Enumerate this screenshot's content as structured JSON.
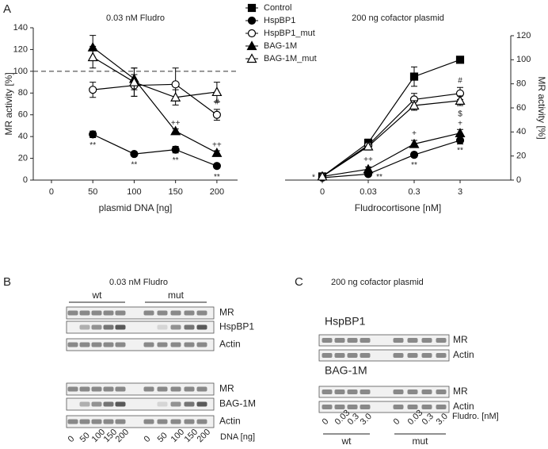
{
  "panel_labels": [
    "A",
    "B",
    "C"
  ],
  "chart_data": [
    {
      "type": "line",
      "title": "0.03 nM Fludro",
      "xlabel": "plasmid DNA [ng]",
      "ylabel": "MR activity [%]",
      "x": [
        50,
        100,
        150,
        200
      ],
      "xlim": [
        -22,
        225
      ],
      "xticks": [
        0,
        50,
        100,
        150,
        200
      ],
      "ylim": [
        0,
        140
      ],
      "yticks": [
        0,
        20,
        40,
        60,
        80,
        100,
        120,
        140
      ],
      "reference_line": 100,
      "series": [
        {
          "name": "HspBP1",
          "color": "#000000",
          "marker": "circle",
          "values": [
            42,
            24,
            28,
            13
          ],
          "errors": [
            3,
            2,
            3,
            2
          ]
        },
        {
          "name": "HspBP1_mut",
          "color": "#000000",
          "marker": "circle-open",
          "values": [
            83,
            87,
            88,
            60
          ],
          "errors": [
            7,
            10,
            15,
            5
          ]
        },
        {
          "name": "BAG-1M",
          "color": "#000000",
          "marker": "triangle",
          "values": [
            122,
            93,
            45,
            25
          ],
          "errors": [
            11,
            10,
            2,
            2
          ]
        },
        {
          "name": "BAG-1M_mut",
          "color": "#000000",
          "marker": "triangle-open",
          "values": [
            113,
            90,
            76,
            81
          ],
          "errors": [
            10,
            13,
            7,
            9
          ]
        }
      ],
      "annotations": [
        "**",
        "**",
        "**",
        "**",
        "++",
        "++",
        "#"
      ]
    },
    {
      "type": "line",
      "title": "200 ng cofactor plasmid",
      "xlabel": "Fludrocortisone [nM]",
      "ylabel": "MR activity [%]",
      "categories": [
        "0",
        "0.03",
        "0.3",
        "3"
      ],
      "legend": true,
      "y2lim": [
        0,
        120
      ],
      "y2ticks": [
        0,
        20,
        40,
        60,
        80,
        100,
        120
      ],
      "series": [
        {
          "name": "Control",
          "color": "#000000",
          "marker": "square",
          "axis": "y2",
          "values": [
            3,
            31,
            86,
            100
          ],
          "errors": [
            1,
            3,
            8,
            1
          ]
        },
        {
          "name": "HspBP1",
          "color": "#000000",
          "marker": "circle",
          "axis": "y2",
          "values": [
            2,
            5,
            21,
            33
          ],
          "errors": [
            1,
            1,
            2,
            3
          ]
        },
        {
          "name": "HspBP1_mut",
          "color": "#000000",
          "marker": "circle-open",
          "axis": "y2",
          "values": [
            3,
            29,
            67,
            72
          ],
          "errors": [
            1,
            3,
            5,
            5
          ]
        },
        {
          "name": "BAG-1M",
          "color": "#000000",
          "marker": "triangle",
          "axis": "y2",
          "values": [
            3,
            9,
            30,
            39
          ],
          "errors": [
            1,
            2,
            3,
            3
          ]
        },
        {
          "name": "BAG-1M_mut",
          "color": "#000000",
          "marker": "triangle-open",
          "axis": "y2",
          "values": [
            3,
            28,
            62,
            66
          ],
          "errors": [
            1,
            3,
            4,
            4
          ]
        }
      ],
      "annotations": [
        "*",
        "++",
        "**",
        "+",
        "**",
        "#",
        "$",
        "+",
        "**"
      ]
    }
  ],
  "blots": {
    "B": {
      "title": "0.03 nM Fludro",
      "groups": [
        "wt",
        "mut"
      ],
      "sets": [
        {
          "rows": [
            "MR",
            "HspBP1",
            "Actin"
          ]
        },
        {
          "rows": [
            "MR",
            "BAG-1M",
            "Actin"
          ]
        }
      ],
      "lanes": [
        "0",
        "50",
        "100",
        "150",
        "200"
      ],
      "lane_axis": "DNA [ng]"
    },
    "C": {
      "title": "200 ng cofactor plasmid",
      "groups": [
        "wt",
        "mut"
      ],
      "sets": [
        {
          "name": "HspBP1",
          "rows": [
            "MR",
            "Actin"
          ]
        },
        {
          "name": "BAG-1M",
          "rows": [
            "MR",
            "Actin"
          ]
        }
      ],
      "lanes": [
        "0",
        "0.03",
        "0.3",
        "3.0"
      ],
      "lane_axis": "Fludro. [nM]"
    }
  }
}
